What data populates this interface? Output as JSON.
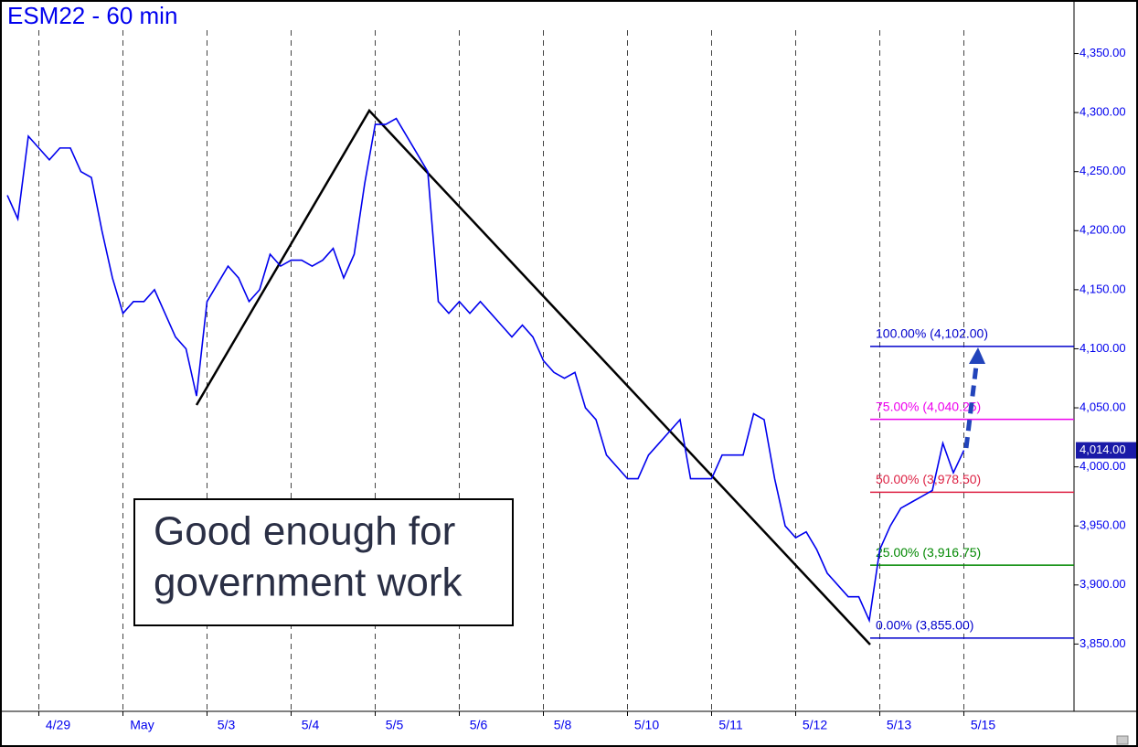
{
  "chart_data": {
    "type": "line",
    "title": "ESM22 - 60 min",
    "color": "#0000ee",
    "categories": [
      null,
      null,
      null,
      "4/29",
      null,
      null,
      null,
      null,
      null,
      null,
      null,
      "May",
      null,
      null,
      null,
      null,
      null,
      null,
      null,
      "5/3",
      null,
      null,
      null,
      null,
      null,
      null,
      null,
      "5/4",
      null,
      null,
      null,
      null,
      null,
      null,
      null,
      "5/5",
      null,
      null,
      null,
      null,
      null,
      null,
      null,
      "5/6",
      null,
      null,
      null,
      null,
      null,
      null,
      null,
      "5/8",
      null,
      null,
      null,
      null,
      null,
      null,
      null,
      "5/10",
      null,
      null,
      null,
      null,
      null,
      null,
      null,
      "5/11",
      null,
      null,
      null,
      null,
      null,
      null,
      null,
      "5/12",
      null,
      null,
      null,
      null,
      null,
      null,
      null,
      "5/13",
      null,
      null,
      null,
      null,
      null,
      null,
      null,
      "5/15"
    ],
    "values": [
      4230,
      4210,
      4280,
      4270,
      4260,
      4270,
      4270,
      4250,
      4245,
      4200,
      4160,
      4130,
      4140,
      4140,
      4150,
      4130,
      4110,
      4100,
      4060,
      4140,
      4155,
      4170,
      4160,
      4140,
      4150,
      4180,
      4170,
      4175,
      4175,
      4170,
      4175,
      4185,
      4160,
      4180,
      4240,
      4290,
      4290,
      4295,
      4280,
      4265,
      4250,
      4140,
      4130,
      4140,
      4130,
      4140,
      4130,
      4120,
      4110,
      4120,
      4110,
      4090,
      4080,
      4075,
      4080,
      4050,
      4040,
      4010,
      4000,
      3990,
      3990,
      4010,
      4020,
      4030,
      4040,
      3990,
      3990,
      3990,
      4010,
      4010,
      4010,
      4045,
      4040,
      3990,
      3950,
      3940,
      3945,
      3930,
      3910,
      3900,
      3890,
      3890,
      3870,
      3930,
      3950,
      3965,
      3970,
      3975,
      3980,
      4020,
      3995,
      4014
    ],
    "ylim": [
      3793,
      4393
    ],
    "yticks": [
      {
        "value": 3850,
        "label": "3,850.00"
      },
      {
        "value": 3900,
        "label": "3,900.00"
      },
      {
        "value": 3950,
        "label": "3,950.00"
      },
      {
        "value": 4000,
        "label": "4,000.00"
      },
      {
        "value": 4050,
        "label": "4,050.00"
      },
      {
        "value": 4100,
        "label": "4,100.00"
      },
      {
        "value": 4150,
        "label": "4,150.00"
      },
      {
        "value": 4200,
        "label": "4,200.00"
      },
      {
        "value": 4250,
        "label": "4,250.00"
      },
      {
        "value": 4300,
        "label": "4,300.00"
      },
      {
        "value": 4350,
        "label": "4,350.00"
      }
    ],
    "last": {
      "value": 4014,
      "label": "4,014.00"
    },
    "levels": [
      {
        "value": 4102,
        "label": "100.00% (4,102.00)",
        "color": "#0000cc"
      },
      {
        "value": 4040.25,
        "label": "75.00% (4,040.25)",
        "color": "#ee00ee"
      },
      {
        "value": 3978.5,
        "label": "50.00% (3,978.50)",
        "color": "#dd2244"
      },
      {
        "value": 3916.75,
        "label": "25.00% (3,916.75)",
        "color": "#008800"
      },
      {
        "value": 3855,
        "label": "0.00% (3,855.00)",
        "color": "#0000cc"
      }
    ],
    "annotation": [
      "Good enough for",
      "government work"
    ]
  }
}
